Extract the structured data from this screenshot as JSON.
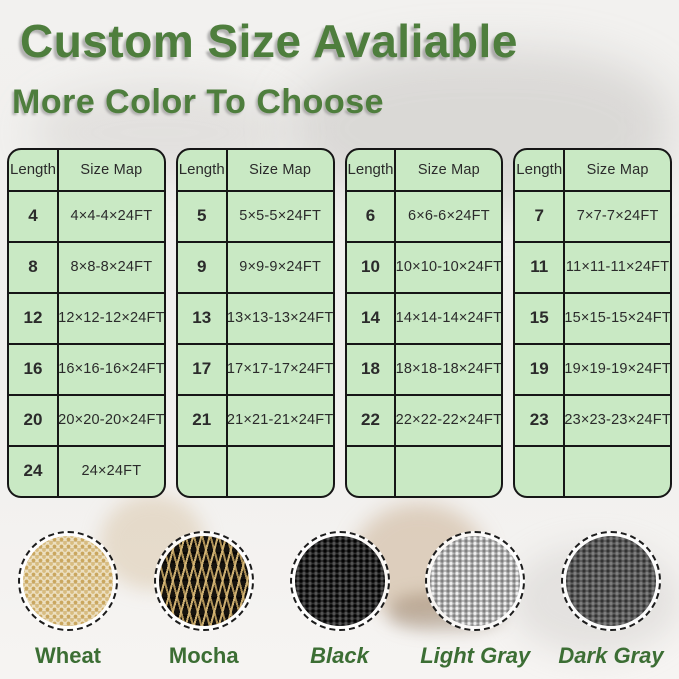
{
  "title": "Custom Size Avaliable",
  "subtitle": "More Color To Choose",
  "size_tables": [
    {
      "headers": [
        "Length",
        "Size Map"
      ],
      "rows": [
        [
          "4",
          "4×4-4×24FT"
        ],
        [
          "8",
          "8×8-8×24FT"
        ],
        [
          "12",
          "12×12-12×24FT"
        ],
        [
          "16",
          "16×16-16×24FT"
        ],
        [
          "20",
          "20×20-20×24FT"
        ],
        [
          "24",
          "24×24FT"
        ]
      ]
    },
    {
      "headers": [
        "Length",
        "Size Map"
      ],
      "rows": [
        [
          "5",
          "5×5-5×24FT"
        ],
        [
          "9",
          "9×9-9×24FT"
        ],
        [
          "13",
          "13×13-13×24FT"
        ],
        [
          "17",
          "17×17-17×24FT"
        ],
        [
          "21",
          "21×21-21×24FT"
        ],
        [
          "",
          ""
        ]
      ]
    },
    {
      "headers": [
        "Length",
        "Size Map"
      ],
      "rows": [
        [
          "6",
          "6×6-6×24FT"
        ],
        [
          "10",
          "10×10-10×24FT"
        ],
        [
          "14",
          "14×14-14×24FT"
        ],
        [
          "18",
          "18×18-18×24FT"
        ],
        [
          "22",
          "22×22-22×24FT"
        ],
        [
          "",
          ""
        ]
      ]
    },
    {
      "headers": [
        "Length",
        "Size Map"
      ],
      "rows": [
        [
          "7",
          "7×7-7×24FT"
        ],
        [
          "11",
          "11×11-11×24FT"
        ],
        [
          "15",
          "15×15-15×24FT"
        ],
        [
          "19",
          "19×19-19×24FT"
        ],
        [
          "23",
          "23×23-23×24FT"
        ],
        [
          "",
          ""
        ]
      ]
    }
  ],
  "swatches": [
    {
      "name": "wheat",
      "label": "Wheat",
      "base_color": "#e9dcb5"
    },
    {
      "name": "mocha",
      "label": "Mocha",
      "base_color": "#1d1a14"
    },
    {
      "name": "black",
      "label": "Black",
      "base_color": "#2d2d2d"
    },
    {
      "name": "light-gray",
      "label": "Light Gray",
      "base_color": "#b6b6b6"
    },
    {
      "name": "dark-gray",
      "label": "Dark Gray",
      "base_color": "#5e5e5e"
    }
  ],
  "colors": {
    "heading_green": "#4e7e3d",
    "label_green": "#3c6e34",
    "table_background": "#c9e9c4",
    "table_border": "#161616",
    "page_background": "#f2f1ef"
  }
}
